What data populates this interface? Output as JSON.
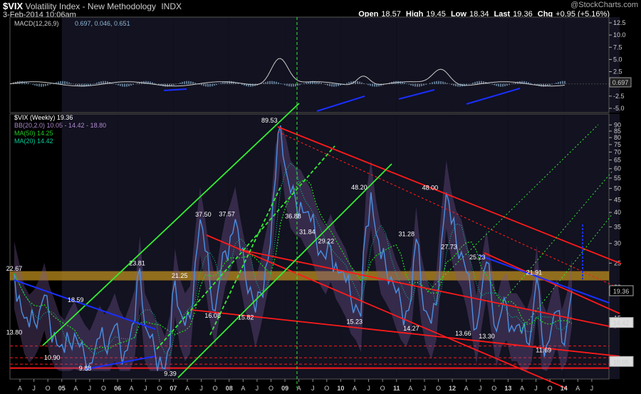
{
  "header": {
    "symbol": "$VIX",
    "name": "Volatility Index - New Methodology",
    "exchange": "INDX",
    "date": "3-Feb-2014 10:06am",
    "quote": {
      "open_label": "Open",
      "open": "18.57",
      "high_label": "High",
      "high": "19.45",
      "low_label": "Low",
      "low": "18.34",
      "last_label": "Last",
      "last": "19.36",
      "chg_label": "Chg",
      "chg": "+0.95 (+5.16%)"
    },
    "credit": "@StockCharts.com"
  },
  "colors": {
    "price": "#4a90e2",
    "ma50": "#22cc22",
    "ma20": "#00cc99",
    "bb": "#7a5a9a",
    "trend_red": "#ff1a1a",
    "trend_green": "#33ee33",
    "trend_blue": "#1a2fff",
    "band": "#c8961e",
    "macd": "#8fb8d8"
  },
  "macd_panel": {
    "legend": "MACD(12,26,9)",
    "legend_values": "0.697, 0.046, 0.651",
    "last_value": "0.697",
    "y_ticks": [
      "12.5",
      "10.0",
      "7.5",
      "5.0",
      "2.5",
      "0.0",
      "-2.5",
      "-5.0"
    ]
  },
  "price_panel": {
    "legend": [
      {
        "text": "$VIX (Weekly) 19.36",
        "color": "#ffffff"
      },
      {
        "text": "BB(20,2.0) 10.05 - 14.42 - 18.80",
        "color": "#b08ad0"
      },
      {
        "text": "MA(50) 14.25",
        "color": "#22cc22"
      },
      {
        "text": "MA(20) 14.42",
        "color": "#00cc99"
      }
    ],
    "right_labels": {
      "last": "19.36",
      "ma": "14.42",
      "bb_low": "10.05"
    },
    "y_ticks": [
      "90",
      "85",
      "80",
      "75",
      "70",
      "65",
      "60",
      "55",
      "50",
      "45",
      "40",
      "35",
      "30",
      "25",
      "20",
      "15"
    ],
    "x_ticks": [
      "A",
      "J",
      "O",
      "05",
      "A",
      "J",
      "O",
      "06",
      "A",
      "J",
      "O",
      "07",
      "A",
      "J",
      "O",
      "08",
      "A",
      "J",
      "O",
      "09",
      "A",
      "J",
      "O",
      "10",
      "A",
      "J",
      "O",
      "11",
      "A",
      "J",
      "O",
      "12",
      "A",
      "J",
      "O",
      "13",
      "A",
      "J",
      "O",
      "14",
      "A",
      "J"
    ]
  },
  "chart_data": {
    "type": "line",
    "title": "$VIX Volatility Index - New Methodology (Weekly)",
    "scale": "log",
    "ylim": [
      9,
      92
    ],
    "annotations": [
      {
        "label": "22.67",
        "x": "2004-04",
        "y": 22.67
      },
      {
        "label": "13.80",
        "x": "2004-04",
        "y": 13.8
      },
      {
        "label": "18.59",
        "x": "2005-05",
        "y": 18.59
      },
      {
        "label": "10.90",
        "x": "2004-12",
        "y": 10.9
      },
      {
        "label": "9.88",
        "x": "2005-07",
        "y": 9.88
      },
      {
        "label": "23.81",
        "x": "2006-06",
        "y": 23.81
      },
      {
        "label": "9.39",
        "x": "2007-01",
        "y": 9.39
      },
      {
        "label": "21.25",
        "x": "2007-03",
        "y": 21.25
      },
      {
        "label": "37.50",
        "x": "2007-08",
        "y": 37.5
      },
      {
        "label": "16.08",
        "x": "2007-10",
        "y": 16.08
      },
      {
        "label": "37.57",
        "x": "2008-01",
        "y": 37.57
      },
      {
        "label": "15.82",
        "x": "2008-05",
        "y": 15.82
      },
      {
        "label": "89.53",
        "x": "2008-10",
        "y": 89.53
      },
      {
        "label": "36.88",
        "x": "2009-03",
        "y": 36.88
      },
      {
        "label": "31.84",
        "x": "2009-06",
        "y": 31.84
      },
      {
        "label": "29.22",
        "x": "2009-10",
        "y": 29.22
      },
      {
        "label": "48.20",
        "x": "2010-05",
        "y": 48.2
      },
      {
        "label": "15.23",
        "x": "2010-04",
        "y": 15.23
      },
      {
        "label": "31.28",
        "x": "2011-03",
        "y": 31.28
      },
      {
        "label": "14.27",
        "x": "2011-04",
        "y": 14.27
      },
      {
        "label": "48.00",
        "x": "2011-08",
        "y": 48.0
      },
      {
        "label": "27.73",
        "x": "2011-12",
        "y": 27.73
      },
      {
        "label": "13.66",
        "x": "2012-03",
        "y": 13.66
      },
      {
        "label": "25.23",
        "x": "2012-06",
        "y": 25.23
      },
      {
        "label": "13.30",
        "x": "2012-08",
        "y": 13.3
      },
      {
        "label": "21.91",
        "x": "2013-06",
        "y": 21.91
      },
      {
        "label": "11.69",
        "x": "2013-08",
        "y": 11.69
      }
    ],
    "series": [
      {
        "name": "$VIX (Weekly)",
        "values": [
          22.67,
          18.5,
          15.0,
          13.8,
          14.5,
          16.0,
          18.59,
          15.0,
          13.2,
          11.5,
          10.9,
          12.0,
          13.0,
          11.5,
          10.5,
          9.88,
          11.0,
          12.5,
          11.5,
          12.5,
          14.0,
          12.0,
          11.0,
          12.5,
          14.5,
          23.81,
          14.0,
          12.5,
          11.0,
          10.5,
          9.39,
          11.5,
          21.25,
          16.0,
          14.0,
          15.0,
          25.0,
          37.5,
          28.0,
          20.0,
          16.08,
          22.0,
          28.0,
          32.0,
          37.57,
          28.0,
          22.0,
          20.0,
          15.82,
          19.0,
          24.0,
          30.0,
          55.0,
          89.53,
          60.0,
          48.0,
          45.0,
          44.0,
          40.0,
          36.88,
          31.84,
          28.0,
          26.0,
          29.22,
          25.0,
          23.0,
          21.0,
          18.0,
          17.0,
          15.23,
          35.0,
          48.2,
          33.0,
          26.0,
          24.0,
          22.0,
          19.0,
          17.0,
          16.0,
          18.0,
          31.28,
          20.0,
          16.0,
          14.27,
          17.0,
          30.0,
          48.0,
          36.0,
          30.0,
          27.73,
          23.0,
          18.0,
          13.66,
          19.0,
          25.23,
          18.0,
          13.3,
          16.0,
          17.0,
          14.0,
          14.0,
          13.0,
          12.0,
          14.0,
          21.91,
          13.0,
          11.69,
          14.0,
          16.0,
          12.0,
          14.0,
          19.36
        ]
      },
      {
        "name": "MA(50)",
        "values": []
      },
      {
        "name": "MA(20)",
        "values": []
      }
    ]
  }
}
